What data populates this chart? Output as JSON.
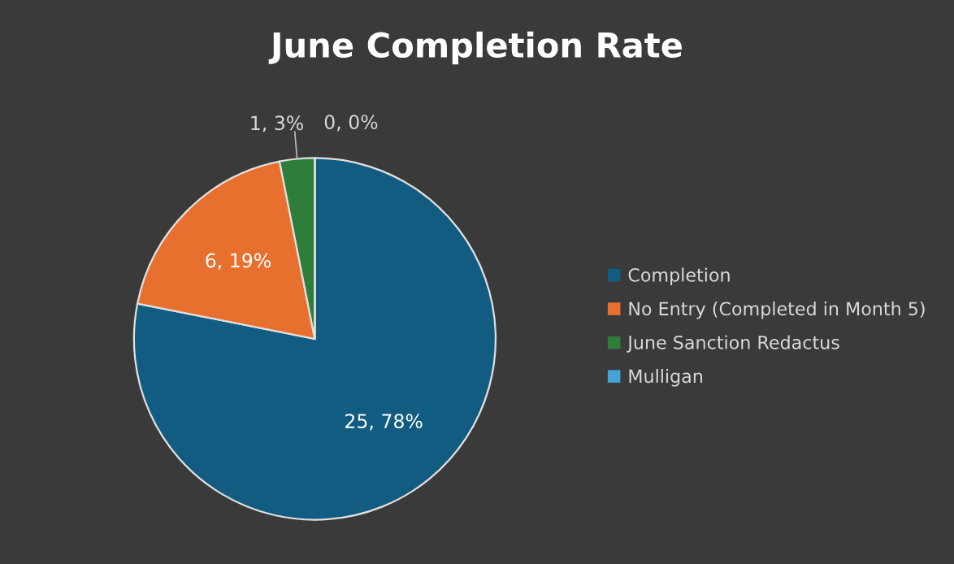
{
  "chart_data": {
    "type": "pie",
    "title": "June Completion Rate",
    "categories": [
      "Completion",
      "No Entry (Completed in Month 5)",
      "June Sanction Redactus",
      "Mulligan"
    ],
    "values": [
      25,
      6,
      1,
      0
    ],
    "colors": [
      "#125c82",
      "#e8702f",
      "#2f7d3a",
      "#45a3d6"
    ],
    "value_labels": [
      "25, 78%",
      "6, 19%",
      "1, 3%",
      "0, 0%"
    ],
    "legend": "right"
  }
}
